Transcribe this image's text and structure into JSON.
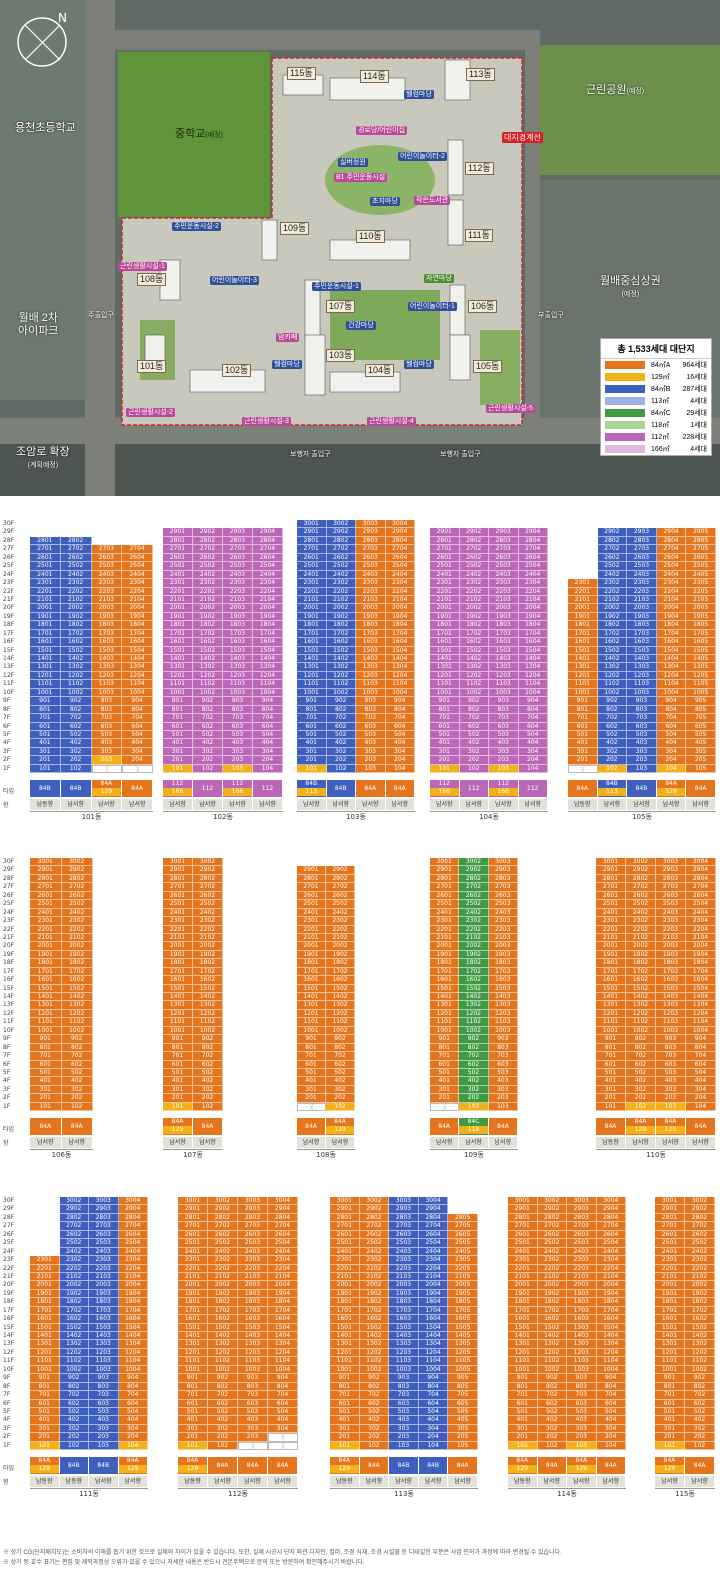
{
  "siteplan": {
    "labels": {
      "school_elem": "용천초등학교",
      "middle_school": "중학교",
      "middle_school_note": "(예정)",
      "park": "근린공원",
      "park_note": "(예정)",
      "apt": "월배 2차\n아이파크",
      "commerce": "월배중심상권",
      "commerce_note": "(예정)",
      "road": "조암로 확장",
      "road_note": "(계획예정)",
      "boundary": "대지경계선",
      "sub_entrance_w": "주출입구",
      "sub_entrance_e": "부출입구",
      "main_entrance_1": "보행자 출입구",
      "main_entrance_2": "보행자 출입구"
    },
    "buildings": [
      "101동",
      "102동",
      "103동",
      "104동",
      "105동",
      "106동",
      "107동",
      "108동",
      "109동",
      "110동",
      "111동",
      "112동",
      "113동",
      "114동",
      "115동"
    ],
    "facilities": [
      {
        "label": "주민운동시설-1",
        "tone": "blue"
      },
      {
        "label": "주민운동시설-2",
        "tone": "blue"
      },
      {
        "label": "어린이놀이터-1",
        "tone": "blue"
      },
      {
        "label": "어린이놀이터-2",
        "tone": "blue"
      },
      {
        "label": "어린이놀이터-3",
        "tone": "blue"
      },
      {
        "label": "근린생활시설-1",
        "tone": "pink"
      },
      {
        "label": "근린생활시설-2",
        "tone": "pink"
      },
      {
        "label": "근린생활시설-3",
        "tone": "pink"
      },
      {
        "label": "근린생활시설-4",
        "tone": "pink"
      },
      {
        "label": "근린생활시설-5",
        "tone": "pink"
      },
      {
        "label": "경로당/어린이집",
        "tone": "pink"
      },
      {
        "label": "B1 주민운동시설",
        "tone": "pink"
      },
      {
        "label": "작은도서관",
        "tone": "pink"
      },
      {
        "label": "건강마당",
        "tone": "blue"
      },
      {
        "label": "실버정원",
        "tone": "blue"
      },
      {
        "label": "초지마당",
        "tone": "blue"
      },
      {
        "label": "맘카페",
        "tone": "pink"
      },
      {
        "label": "자연마당",
        "tone": "green"
      },
      {
        "label": "웰컴마당",
        "tone": "blue"
      },
      {
        "label": "웰컴마당",
        "tone": "blue"
      },
      {
        "label": "웰컴마당",
        "tone": "blue"
      }
    ]
  },
  "legend": {
    "title": "총 1,533세대 대단지",
    "rows": [
      {
        "area": "84㎡A",
        "count": "964세대",
        "color": "#e4751d"
      },
      {
        "area": "129㎡",
        "count": "16세대",
        "color": "#f3b018"
      },
      {
        "area": "84㎡B",
        "count": "287세대",
        "color": "#3f5fbf"
      },
      {
        "area": "113㎡",
        "count": "4세대",
        "color": "#9fb1e3"
      },
      {
        "area": "84㎡C",
        "count": "29세대",
        "color": "#3f9a43"
      },
      {
        "area": "118㎡",
        "count": "1세대",
        "color": "#a7d597"
      },
      {
        "area": "112㎡",
        "count": "228세대",
        "color": "#bb66b7"
      },
      {
        "area": "166㎡",
        "count": "4세대",
        "color": "#e2b9df"
      }
    ]
  },
  "row_labels": {
    "type": "타입",
    "dir": "향"
  },
  "floor_labels": [
    "30F",
    "29F",
    "28F",
    "27F",
    "26F",
    "25F",
    "24F",
    "23F",
    "22F",
    "21F",
    "20F",
    "19F",
    "18F",
    "17F",
    "16F",
    "15F",
    "14F",
    "13F",
    "12F",
    "11F",
    "10F",
    "9F",
    "8F",
    "7F",
    "6F",
    "5F",
    "4F",
    "3F",
    "2F",
    "1F"
  ],
  "blocks": [
    {
      "dong": "101동",
      "row": 0,
      "left": 30,
      "width": 123,
      "cols": [
        {
          "top": 28,
          "bottom": 1,
          "color": "b",
          "unit": "01",
          "type": "84B",
          "dir": "남동향"
        },
        {
          "top": 28,
          "bottom": 1,
          "color": "b",
          "unit": "02",
          "type": "84B",
          "dir": "남서향"
        },
        {
          "top": 27,
          "bottom": 2,
          "color": "o",
          "unit": "03",
          "type": "84A",
          "type2": "129",
          "dir": "남서향"
        },
        {
          "top": 27,
          "bottom": 2,
          "color": "o",
          "unit": "04",
          "type": "84A",
          "dir": "남서향"
        }
      ]
    },
    {
      "dong": "102동",
      "row": 0,
      "left": 163,
      "width": 120,
      "cols": [
        {
          "top": 29,
          "bottom": 1,
          "color": "p",
          "unit": "01",
          "type": "112",
          "type2": "166",
          "dir": "남서향"
        },
        {
          "top": 29,
          "bottom": 1,
          "color": "p",
          "unit": "02",
          "type": "112",
          "dir": "남서향"
        },
        {
          "top": 29,
          "bottom": 1,
          "color": "p",
          "unit": "03",
          "type": "112",
          "type2": "166",
          "dir": "남서향"
        },
        {
          "top": 29,
          "bottom": 1,
          "color": "p",
          "unit": "04",
          "type": "112",
          "dir": "남서향"
        }
      ]
    },
    {
      "dong": "103동",
      "row": 0,
      "left": 297,
      "width": 118,
      "cols": [
        {
          "top": 30,
          "bottom": 1,
          "color": "b",
          "unit": "01",
          "type": "84B",
          "type2": "113",
          "dir": "남서향"
        },
        {
          "top": 30,
          "bottom": 1,
          "color": "b",
          "unit": "02",
          "type": "84B",
          "dir": "남서향"
        },
        {
          "top": 30,
          "bottom": 1,
          "color": "o",
          "unit": "03",
          "type": "84A",
          "dir": "남서향"
        },
        {
          "top": 30,
          "bottom": 1,
          "color": "o",
          "unit": "04",
          "type": "84A",
          "dir": "남서향"
        }
      ]
    },
    {
      "dong": "104동",
      "row": 0,
      "left": 430,
      "width": 118,
      "cols": [
        {
          "top": 29,
          "bottom": 1,
          "color": "p",
          "unit": "01",
          "type": "112",
          "type2": "166",
          "dir": "남서향"
        },
        {
          "top": 29,
          "bottom": 1,
          "color": "p",
          "unit": "02",
          "type": "112",
          "dir": "남서향"
        },
        {
          "top": 29,
          "bottom": 1,
          "color": "p",
          "unit": "03",
          "type": "112",
          "type2": "166",
          "dir": "남서향"
        },
        {
          "top": 29,
          "bottom": 1,
          "color": "p",
          "unit": "04",
          "type": "112",
          "dir": "남서향"
        }
      ]
    },
    {
      "dong": "105동",
      "row": 0,
      "left": 568,
      "width": 148,
      "cols": [
        {
          "top": 23,
          "bottom": 2,
          "color": "o",
          "unit": "01",
          "type": "84A",
          "dir": "남동향"
        },
        {
          "top": 29,
          "bottom": 1,
          "color": "b",
          "unit": "02",
          "type": "84B",
          "type2": "113",
          "dir": "남서향"
        },
        {
          "top": 29,
          "bottom": 1,
          "color": "b",
          "unit": "03",
          "type": "84B",
          "dir": "남서향"
        },
        {
          "top": 29,
          "bottom": 1,
          "color": "o",
          "unit": "04",
          "type": "84A",
          "type2": "129",
          "dir": "남서향"
        },
        {
          "top": 29,
          "bottom": 1,
          "color": "o",
          "unit": "05",
          "type": "84A",
          "dir": "남서향"
        }
      ]
    },
    {
      "dong": "106동",
      "row": 1,
      "left": 30,
      "width": 63,
      "cols": [
        {
          "top": 30,
          "bottom": 1,
          "color": "o",
          "unit": "01",
          "type": "84A",
          "dir": "남서향"
        },
        {
          "top": 30,
          "bottom": 1,
          "color": "o",
          "unit": "02",
          "type": "84A",
          "dir": "남서향"
        }
      ]
    },
    {
      "dong": "107동",
      "row": 1,
      "left": 163,
      "width": 60,
      "cols": [
        {
          "top": 30,
          "bottom": 1,
          "color": "o",
          "unit": "01",
          "type": "84A",
          "type2": "129",
          "dir": "남서향"
        },
        {
          "top": 30,
          "bottom": 1,
          "color": "o",
          "unit": "02",
          "type": "84A",
          "dir": "남서향"
        }
      ]
    },
    {
      "dong": "108동",
      "row": 1,
      "left": 297,
      "width": 58,
      "cols": [
        {
          "top": 29,
          "bottom": 2,
          "color": "o",
          "unit": "01",
          "type": "84A",
          "dir": "남서향"
        },
        {
          "top": 29,
          "bottom": 1,
          "color": "o",
          "unit": "02",
          "type": "84A",
          "type2": "129",
          "dir": "남서향"
        }
      ]
    },
    {
      "dong": "109동",
      "row": 1,
      "left": 430,
      "width": 88,
      "cols": [
        {
          "top": 30,
          "bottom": 2,
          "color": "o",
          "unit": "01",
          "type": "84A",
          "dir": "남서향"
        },
        {
          "top": 30,
          "bottom": 1,
          "color": "g",
          "unit": "02",
          "type": "84C",
          "type2": "118",
          "dir": "남서향"
        },
        {
          "top": 30,
          "bottom": 1,
          "color": "o",
          "unit": "03",
          "type": "84A",
          "dir": "남서향"
        }
      ]
    },
    {
      "dong": "110동",
      "row": 1,
      "left": 596,
      "width": 120,
      "cols": [
        {
          "top": 30,
          "bottom": 1,
          "color": "o",
          "unit": "01",
          "type": "84A",
          "dir": "남동향"
        },
        {
          "top": 30,
          "bottom": 1,
          "color": "o",
          "unit": "02",
          "type": "84A",
          "type2": "129",
          "dir": "남서향"
        },
        {
          "top": 30,
          "bottom": 1,
          "color": "o",
          "unit": "03",
          "type": "84A",
          "type2": "129",
          "dir": "남서향"
        },
        {
          "top": 30,
          "bottom": 1,
          "color": "o",
          "unit": "04",
          "type": "84A",
          "dir": "남서향"
        }
      ]
    },
    {
      "dong": "111동",
      "row": 2,
      "left": 30,
      "width": 118,
      "cols": [
        {
          "top": 23,
          "bottom": 1,
          "color": "o",
          "unit": "01",
          "type": "84A",
          "type2": "129",
          "dir": "남동향"
        },
        {
          "top": 30,
          "bottom": 1,
          "color": "b",
          "unit": "02",
          "type": "84B",
          "dir": "남동향"
        },
        {
          "top": 30,
          "bottom": 1,
          "color": "b",
          "unit": "03",
          "type": "84B",
          "dir": "남서향"
        },
        {
          "top": 30,
          "bottom": 1,
          "color": "o",
          "unit": "04",
          "type": "84A",
          "type2": "129",
          "dir": "남서향"
        }
      ]
    },
    {
      "dong": "112동",
      "row": 2,
      "left": 178,
      "width": 120,
      "cols": [
        {
          "top": 30,
          "bottom": 1,
          "color": "o",
          "unit": "01",
          "type": "84A",
          "type2": "129",
          "dir": "남동향"
        },
        {
          "top": 30,
          "bottom": 1,
          "color": "o",
          "unit": "02",
          "type": "84A",
          "dir": "남서향"
        },
        {
          "top": 30,
          "bottom": 2,
          "color": "o",
          "unit": "03",
          "type": "84A",
          "dir": "남서향"
        },
        {
          "top": 30,
          "bottom": 3,
          "color": "o",
          "unit": "04",
          "type": "84A",
          "dir": "남서향"
        }
      ]
    },
    {
      "dong": "113동",
      "row": 2,
      "left": 330,
      "width": 148,
      "cols": [
        {
          "top": 30,
          "bottom": 1,
          "color": "o",
          "unit": "01",
          "type": "84A",
          "type2": "129",
          "dir": "남동향"
        },
        {
          "top": 30,
          "bottom": 1,
          "color": "o",
          "unit": "02",
          "type": "84A",
          "dir": "남서향"
        },
        {
          "top": 30,
          "bottom": 1,
          "color": "b",
          "unit": "03",
          "type": "84B",
          "dir": "남서향"
        },
        {
          "top": 30,
          "bottom": 1,
          "color": "b",
          "unit": "04",
          "type": "84B",
          "dir": "남서향"
        },
        {
          "top": 28,
          "bottom": 1,
          "color": "o",
          "unit": "05",
          "type": "84A",
          "dir": "남서향"
        }
      ]
    },
    {
      "dong": "114동",
      "row": 2,
      "left": 508,
      "width": 118,
      "cols": [
        {
          "top": 30,
          "bottom": 1,
          "color": "o",
          "unit": "01",
          "type": "84A",
          "type2": "129",
          "dir": "남동향"
        },
        {
          "top": 30,
          "bottom": 1,
          "color": "o",
          "unit": "02",
          "type": "84A",
          "dir": "남서향"
        },
        {
          "top": 30,
          "bottom": 1,
          "color": "o",
          "unit": "03",
          "type": "84A",
          "type2": "129",
          "dir": "남서향"
        },
        {
          "top": 30,
          "bottom": 1,
          "color": "o",
          "unit": "04",
          "type": "84A",
          "dir": "남서향"
        }
      ]
    },
    {
      "dong": "115동",
      "row": 2,
      "left": 655,
      "width": 60,
      "cols": [
        {
          "top": 30,
          "bottom": 1,
          "color": "o",
          "unit": "01",
          "type": "84A",
          "type2": "129",
          "dir": "남서향"
        },
        {
          "top": 30,
          "bottom": 1,
          "color": "o",
          "unit": "02",
          "type": "84A",
          "dir": "남서향"
        }
      ]
    }
  ],
  "footnotes": [
    "※ 상기 CG(단지배치도)는 소비자의 이해를 돕기 위한 것으로 실제와 차이가 있을 수 있습니다. 또한, 실제 시공시 단지 외관 디자인, 컬러, 조경 식재, 조경 시설물 등 디테일한 부분은 사업 인허가 과정에 따라 변경될 수 있습니다.",
    "※ 상기 동·호수 표기는 편집 및 제작과정상 오류가 있을 수 있으니 자세한 내용은 반드시 견본주택으로 문의 또는 방문하여 확인해주시기 바랍니다."
  ]
}
